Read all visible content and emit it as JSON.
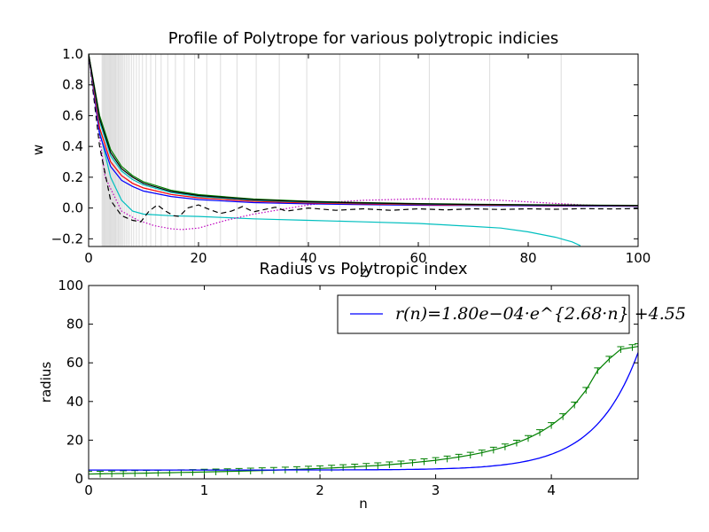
{
  "chart_data": [
    {
      "type": "line",
      "title": "Profile of Polytrope for various polytropic indicies",
      "xlabel": "z",
      "ylabel": "w",
      "xlim": [
        0,
        100
      ],
      "ylim": [
        -0.25,
        1.0
      ],
      "xticks": [
        "0",
        "20",
        "40",
        "60",
        "80",
        "100"
      ],
      "yticks": [
        "−0.2",
        "0.0",
        "0.2",
        "0.4",
        "0.6",
        "0.8",
        "1.0"
      ],
      "grid": false,
      "vertical_markers_note": "light gray vertical lines mark first-zero radii for each index",
      "vertical_markers_x": [
        2.45,
        2.6,
        2.75,
        2.9,
        3.05,
        3.2,
        3.35,
        3.5,
        3.65,
        3.8,
        3.95,
        4.1,
        4.25,
        4.4,
        4.55,
        4.7,
        4.85,
        5.0,
        5.2,
        5.4,
        5.6,
        5.8,
        6.0,
        6.25,
        6.5,
        6.8,
        7.1,
        7.4,
        7.8,
        8.2,
        8.7,
        9.2,
        9.8,
        10.5,
        11.3,
        12.2,
        13.2,
        14.4,
        15.8,
        17.4,
        19.3,
        21.5,
        24.0,
        27.0,
        30.5,
        34.7,
        39.7,
        45.7,
        53.0,
        62.0,
        73.0,
        86.0
      ],
      "series": [
        {
          "color": "#00bfbf",
          "style": "solid",
          "x": [
            0,
            2,
            4,
            6,
            8,
            10,
            15,
            20,
            30,
            40,
            50,
            60,
            70,
            75,
            80,
            85,
            88,
            89.5
          ],
          "y": [
            1.0,
            0.5,
            0.2,
            0.05,
            -0.02,
            -0.04,
            -0.05,
            -0.055,
            -0.07,
            -0.08,
            -0.09,
            -0.1,
            -0.12,
            -0.13,
            -0.155,
            -0.19,
            -0.22,
            -0.245
          ]
        },
        {
          "color": "#bf00bf",
          "style": "dotted",
          "x": [
            0,
            3,
            6,
            9,
            12,
            15,
            17,
            20,
            25,
            30,
            35,
            40,
            45,
            50,
            55,
            60,
            65,
            70,
            75,
            80,
            85,
            90,
            95,
            100
          ],
          "y": [
            1.0,
            0.2,
            -0.02,
            -0.08,
            -0.115,
            -0.135,
            -0.14,
            -0.13,
            -0.08,
            -0.04,
            -0.01,
            0.02,
            0.04,
            0.05,
            0.055,
            0.06,
            0.058,
            0.055,
            0.05,
            0.04,
            0.03,
            0.02,
            0.015,
            0.01
          ]
        },
        {
          "color": "#000000",
          "style": "dashed",
          "x": [
            0,
            2,
            4,
            6,
            8,
            9.5,
            11,
            12.5,
            14,
            15.5,
            16.5,
            18,
            20,
            22,
            24,
            26,
            28,
            30,
            32,
            34,
            36,
            38,
            40,
            45,
            50,
            55,
            60,
            65,
            70,
            75,
            80,
            85,
            90,
            95,
            100
          ],
          "y": [
            1.0,
            0.4,
            0.05,
            -0.05,
            -0.08,
            -0.09,
            -0.02,
            0.02,
            -0.02,
            -0.05,
            -0.055,
            0.0,
            0.02,
            -0.01,
            -0.035,
            -0.02,
            0.01,
            -0.025,
            -0.01,
            0.005,
            -0.02,
            -0.01,
            0.0,
            -0.015,
            -0.005,
            -0.015,
            -0.005,
            -0.012,
            -0.005,
            -0.01,
            -0.005,
            -0.008,
            -0.004,
            -0.006,
            -0.004
          ]
        },
        {
          "color": "#0000ff",
          "style": "solid",
          "x": [
            0,
            2,
            4,
            6,
            8,
            10,
            15,
            20,
            30,
            40,
            50,
            60,
            70,
            80,
            90,
            100
          ],
          "y": [
            1.0,
            0.48,
            0.27,
            0.18,
            0.14,
            0.11,
            0.075,
            0.055,
            0.035,
            0.027,
            0.022,
            0.018,
            0.016,
            0.014,
            0.012,
            0.011
          ]
        },
        {
          "color": "#ff0000",
          "style": "solid",
          "x": [
            0,
            2,
            4,
            6,
            8,
            10,
            15,
            20,
            30,
            40,
            50,
            60,
            70,
            80,
            90,
            100
          ],
          "y": [
            1.0,
            0.52,
            0.3,
            0.21,
            0.16,
            0.13,
            0.088,
            0.066,
            0.044,
            0.033,
            0.027,
            0.022,
            0.019,
            0.017,
            0.015,
            0.013
          ]
        },
        {
          "color": "#00bfbf",
          "style": "solid",
          "x": [
            0,
            2,
            4,
            6,
            8,
            10,
            15,
            20,
            30,
            40,
            50,
            60,
            70,
            80,
            90,
            100
          ],
          "y": [
            1.0,
            0.56,
            0.34,
            0.24,
            0.185,
            0.15,
            0.1,
            0.075,
            0.05,
            0.038,
            0.031,
            0.026,
            0.022,
            0.019,
            0.017,
            0.015
          ]
        },
        {
          "color": "#008000",
          "style": "solid",
          "x": [
            0,
            2,
            4,
            6,
            8,
            10,
            15,
            20,
            30,
            40,
            50,
            60,
            70,
            80,
            90,
            100
          ],
          "y": [
            1.0,
            0.6,
            0.38,
            0.27,
            0.21,
            0.17,
            0.115,
            0.087,
            0.058,
            0.044,
            0.035,
            0.029,
            0.025,
            0.022,
            0.019,
            0.017
          ]
        },
        {
          "color": "#000000",
          "style": "solid",
          "x": [
            0,
            2,
            4,
            6,
            8,
            10,
            15,
            20,
            30,
            40,
            50,
            60,
            70,
            80,
            90,
            100
          ],
          "y": [
            1.0,
            0.58,
            0.36,
            0.255,
            0.2,
            0.16,
            0.108,
            0.081,
            0.054,
            0.041,
            0.033,
            0.027,
            0.023,
            0.02,
            0.018,
            0.016
          ]
        }
      ]
    },
    {
      "type": "line",
      "title": "Radius vs Polytropic index",
      "xlabel": "n",
      "ylabel": "radius",
      "xlim": [
        0,
        4.75
      ],
      "ylim": [
        0,
        100
      ],
      "xticks": [
        "0",
        "1",
        "2",
        "3",
        "4"
      ],
      "yticks": [
        "0",
        "20",
        "40",
        "60",
        "80",
        "100"
      ],
      "legend_position": "top-right",
      "legend": "r(n)=1.80e−04·e^{2.68·n} +4.55",
      "fit": {
        "a": 0.00018,
        "b": 2.68,
        "c": 4.55,
        "color": "#0000ff"
      },
      "data_series": {
        "color": "#008000",
        "marker": "tri_down",
        "n": [
          0.0,
          0.1,
          0.2,
          0.3,
          0.4,
          0.5,
          0.6,
          0.7,
          0.8,
          0.9,
          1.0,
          1.1,
          1.2,
          1.3,
          1.4,
          1.5,
          1.6,
          1.7,
          1.8,
          1.9,
          2.0,
          2.1,
          2.2,
          2.3,
          2.4,
          2.5,
          2.6,
          2.7,
          2.8,
          2.9,
          3.0,
          3.1,
          3.2,
          3.3,
          3.4,
          3.5,
          3.6,
          3.7,
          3.8,
          3.9,
          4.0,
          4.1,
          4.2,
          4.3,
          4.4,
          4.5,
          4.6,
          4.7,
          4.75
        ],
        "radius": [
          2.45,
          2.55,
          2.65,
          2.75,
          2.85,
          2.95,
          3.06,
          3.17,
          3.28,
          3.4,
          3.53,
          3.66,
          3.8,
          3.95,
          4.11,
          4.28,
          4.46,
          4.65,
          4.86,
          5.08,
          5.35,
          5.6,
          5.9,
          6.2,
          6.55,
          6.9,
          7.35,
          7.8,
          8.35,
          8.95,
          9.6,
          10.4,
          11.3,
          12.3,
          13.5,
          14.95,
          16.6,
          18.6,
          21.0,
          24.0,
          27.7,
          32.3,
          38.3,
          45.9,
          56.0,
          62.0,
          67.0,
          68.0,
          68.5
        ]
      }
    }
  ]
}
